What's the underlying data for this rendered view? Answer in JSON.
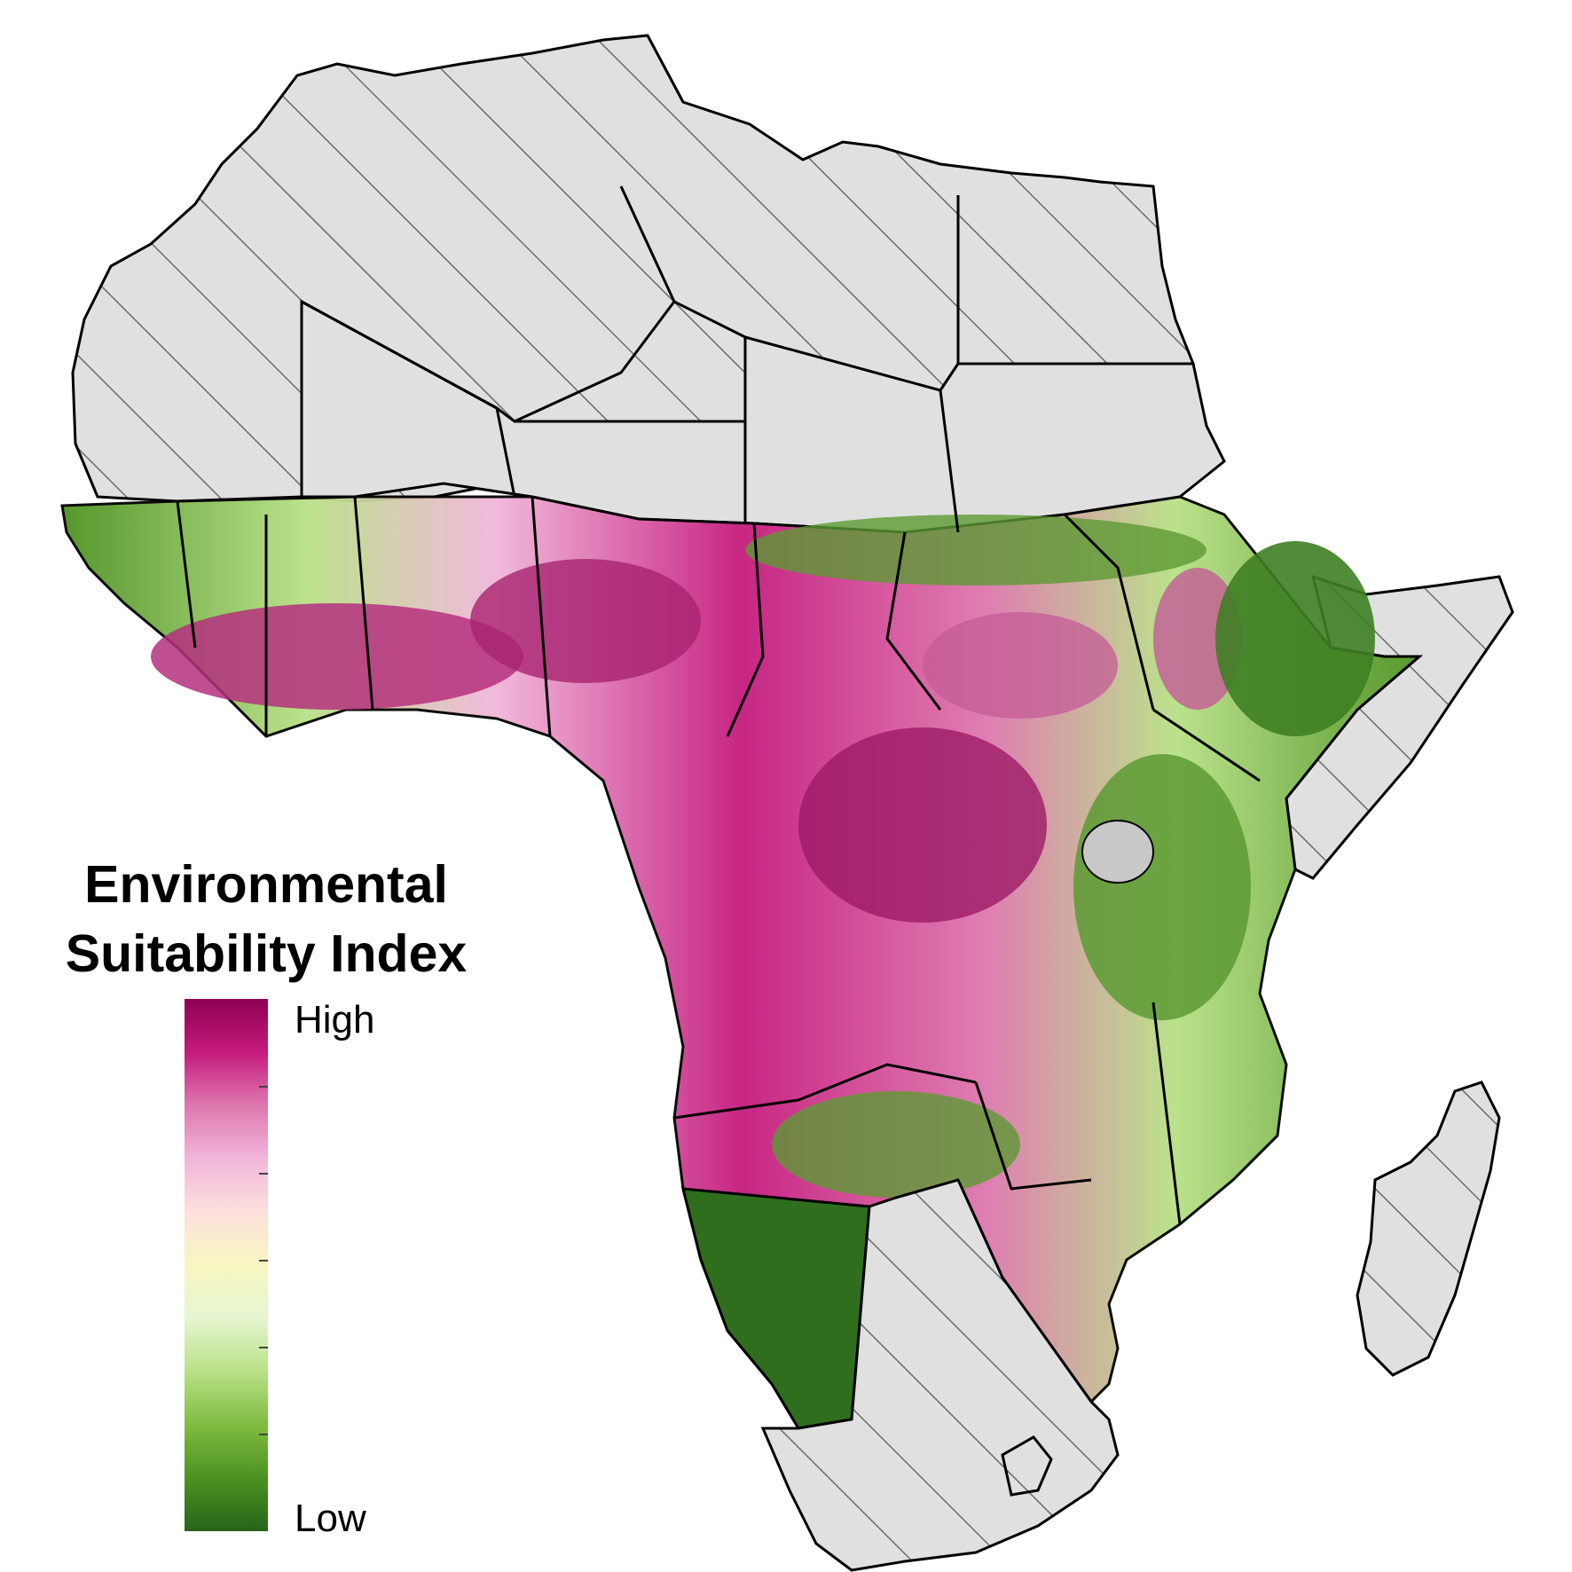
{
  "legend": {
    "title_line1": "Environmental",
    "title_line2": "Suitability Index",
    "high_label": "High",
    "low_label": "Low",
    "gradient_stops": [
      "#276419",
      "#4d9221",
      "#7fbc41",
      "#b8e186",
      "#e6f5d0",
      "#f7f7c0",
      "#fde0dd",
      "#f1b6da",
      "#de77ae",
      "#c51b7d",
      "#8e0152"
    ]
  },
  "colors": {
    "excluded_fill": "#e0e0e0",
    "hatch_stroke": "#6b6b6b",
    "border_stroke": "#000000",
    "water": "#c8c8c8"
  }
}
